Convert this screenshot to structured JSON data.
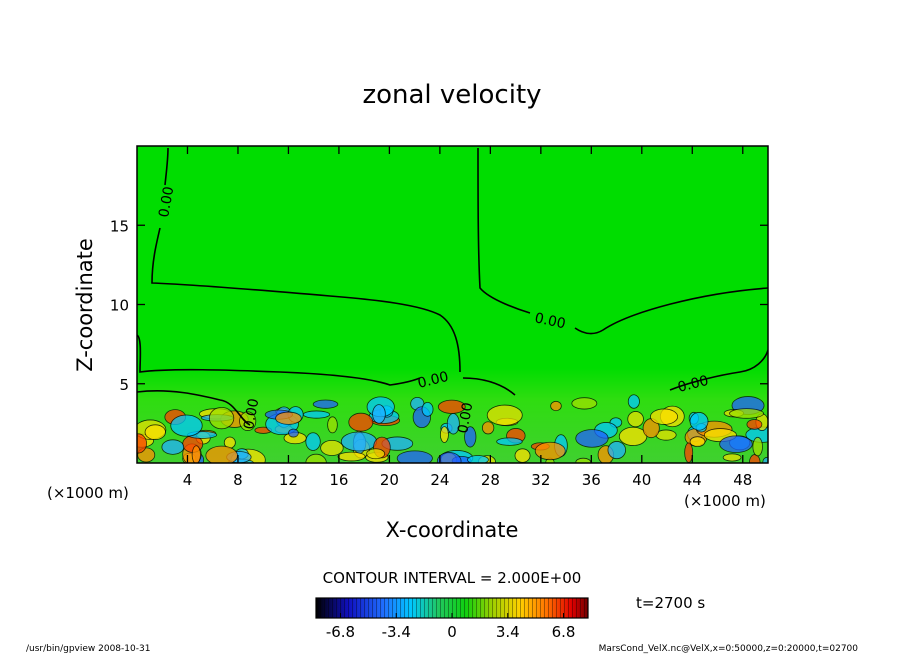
{
  "chart_data": {
    "type": "heatmap",
    "title": "zonal velocity",
    "xlabel": "X-coordinate",
    "ylabel": "Z-coordinate",
    "x_units": "(×1000 m)",
    "y_units": "(×1000 m)",
    "xlim": [
      0,
      50
    ],
    "ylim": [
      0,
      20
    ],
    "x_ticks": [
      4,
      8,
      12,
      16,
      20,
      24,
      28,
      32,
      36,
      40,
      44,
      48
    ],
    "y_ticks": [
      5,
      10,
      15
    ],
    "contour_interval": "CONTOUR INTERVAL = 2.000E+00",
    "contour_label": "0.00",
    "time": "t=2700 s",
    "colorbar": {
      "ticks": [
        "-6.8",
        "-3.4",
        "0",
        "3.4",
        "6.8"
      ],
      "min": -6.8,
      "max": 6.8,
      "colors": [
        "#000000",
        "#1010c0",
        "#2060ff",
        "#00c8ff",
        "#30d060",
        "#00e000",
        "#90e000",
        "#ffe000",
        "#ff8000",
        "#e00000",
        "#800000"
      ]
    },
    "background_color": "#00dd00"
  },
  "footer": {
    "left": "/usr/bin/gpview   2008-10-31",
    "right": "MarsCond_VelX.nc@VelX,x=0:50000,z=0:20000,t=02700"
  }
}
